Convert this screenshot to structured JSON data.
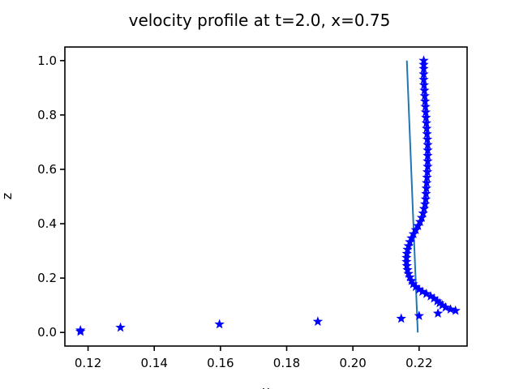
{
  "chart_data": {
    "type": "scatter",
    "title": "velocity profile at t=2.0, x=0.75",
    "xlabel": "u",
    "ylabel": "z",
    "xlim": [
      0.113,
      0.2345
    ],
    "ylim": [
      -0.05,
      1.05
    ],
    "xticks": [
      0.12,
      0.14,
      0.16,
      0.18,
      0.2,
      0.22
    ],
    "xtick_labels": [
      "0.12",
      "0.14",
      "0.16",
      "0.18",
      "0.20",
      "0.22"
    ],
    "yticks": [
      0.0,
      0.2,
      0.4,
      0.6,
      0.8,
      1.0
    ],
    "ytick_labels": [
      "0.0",
      "0.2",
      "0.4",
      "0.6",
      "0.8",
      "1.0"
    ],
    "grid": false,
    "series": [
      {
        "marker": "star",
        "color": "#0000ff",
        "points": [
          [
            0.1177,
            0.003
          ],
          [
            0.1177,
            0.008
          ],
          [
            0.1298,
            0.018
          ],
          [
            0.1597,
            0.03
          ],
          [
            0.1894,
            0.04
          ],
          [
            0.2146,
            0.051
          ],
          [
            0.22,
            0.061
          ],
          [
            0.2257,
            0.07
          ],
          [
            0.231,
            0.08
          ],
          [
            0.2295,
            0.085
          ],
          [
            0.228,
            0.092
          ],
          [
            0.227,
            0.1
          ],
          [
            0.2262,
            0.108
          ],
          [
            0.2255,
            0.115
          ],
          [
            0.2245,
            0.125
          ],
          [
            0.2235,
            0.133
          ],
          [
            0.2222,
            0.142
          ],
          [
            0.221,
            0.15
          ],
          [
            0.22,
            0.158
          ],
          [
            0.219,
            0.168
          ],
          [
            0.2182,
            0.178
          ],
          [
            0.2177,
            0.19
          ],
          [
            0.2172,
            0.203
          ],
          [
            0.2168,
            0.216
          ],
          [
            0.2165,
            0.23
          ],
          [
            0.2163,
            0.245
          ],
          [
            0.2162,
            0.26
          ],
          [
            0.2162,
            0.275
          ],
          [
            0.2163,
            0.29
          ],
          [
            0.2165,
            0.305
          ],
          [
            0.2168,
            0.318
          ],
          [
            0.2172,
            0.333
          ],
          [
            0.2177,
            0.347
          ],
          [
            0.2183,
            0.362
          ],
          [
            0.219,
            0.377
          ],
          [
            0.2197,
            0.392
          ],
          [
            0.2203,
            0.407
          ],
          [
            0.2208,
            0.422
          ],
          [
            0.2212,
            0.438
          ],
          [
            0.2215,
            0.455
          ],
          [
            0.2218,
            0.472
          ],
          [
            0.222,
            0.49
          ],
          [
            0.2221,
            0.51
          ],
          [
            0.2222,
            0.53
          ],
          [
            0.2223,
            0.55
          ],
          [
            0.2224,
            0.57
          ],
          [
            0.2225,
            0.59
          ],
          [
            0.2226,
            0.61
          ],
          [
            0.2226,
            0.63
          ],
          [
            0.2226,
            0.65
          ],
          [
            0.2226,
            0.67
          ],
          [
            0.2226,
            0.69
          ],
          [
            0.2225,
            0.71
          ],
          [
            0.2224,
            0.73
          ],
          [
            0.2223,
            0.75
          ],
          [
            0.2222,
            0.77
          ],
          [
            0.2221,
            0.79
          ],
          [
            0.222,
            0.81
          ],
          [
            0.2219,
            0.83
          ],
          [
            0.2218,
            0.85
          ],
          [
            0.2217,
            0.87
          ],
          [
            0.2216,
            0.89
          ],
          [
            0.2215,
            0.91
          ],
          [
            0.2214,
            0.93
          ],
          [
            0.2214,
            0.95
          ],
          [
            0.2214,
            0.97
          ],
          [
            0.2214,
            0.985
          ],
          [
            0.2214,
            1.0
          ]
        ]
      },
      {
        "marker": "line",
        "color": "#1f77b4",
        "points": [
          [
            0.2196,
            0.0
          ],
          [
            0.2163,
            1.0
          ]
        ]
      }
    ]
  }
}
